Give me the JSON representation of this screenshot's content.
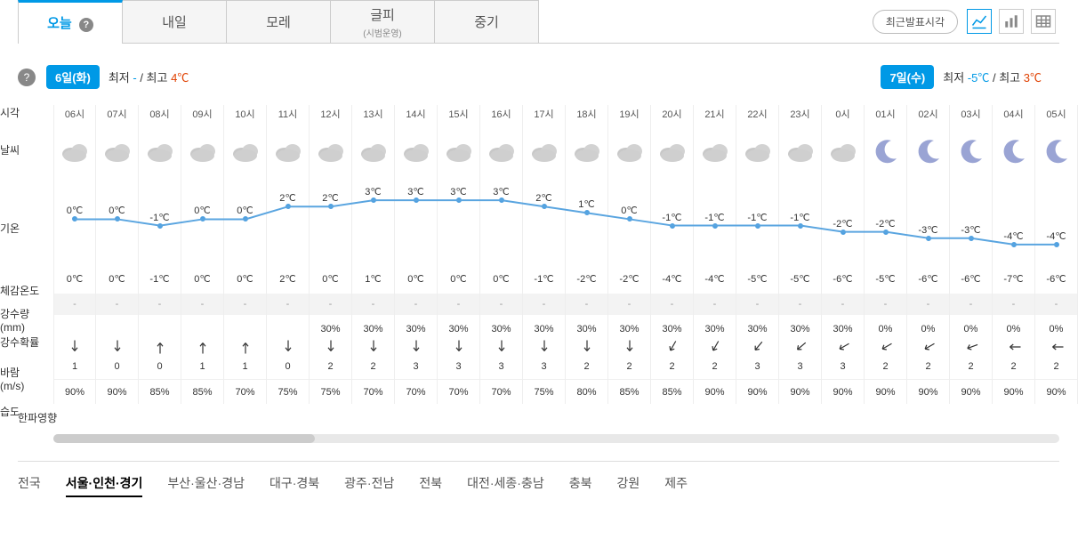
{
  "tabs": [
    {
      "label": "오늘",
      "active": true,
      "help": true
    },
    {
      "label": "내일"
    },
    {
      "label": "모레"
    },
    {
      "label": "글피",
      "sub": "(시범운영)"
    },
    {
      "label": "중기"
    }
  ],
  "latest_btn": "최근발표시각",
  "day1": {
    "pill": "6일(화)",
    "low_lbl": "최저",
    "low": "-",
    "high_lbl": "/ 최고",
    "high": "4℃"
  },
  "day2": {
    "pill": "7일(수)",
    "low_lbl": "최저",
    "low": "-5℃",
    "high_lbl": "/ 최고",
    "high": "3℃"
  },
  "row_labels": {
    "time": "시각",
    "weather": "날씨",
    "temp": "기온",
    "feel": "체감온도",
    "precip_mm": "강수량\n(mm)",
    "prob": "강수확률",
    "wind": "바람\n(m/s)",
    "humid": "습도",
    "coldwave": "한파영향"
  },
  "temp_line_color": "#5aa5e0",
  "temp_ymin": -5,
  "temp_ymax": 4,
  "temp_area_h": 100,
  "hours": [
    {
      "t": "06시",
      "icon": "cloud",
      "temp": 0,
      "temp_lbl": "0℃",
      "feel": "0℃",
      "precip": "-",
      "prob": "",
      "wdir": 90,
      "wspd": "1",
      "humid": "90%"
    },
    {
      "t": "07시",
      "icon": "cloud",
      "temp": 0,
      "temp_lbl": "0℃",
      "feel": "0℃",
      "precip": "-",
      "prob": "",
      "wdir": 90,
      "wspd": "0",
      "humid": "90%"
    },
    {
      "t": "08시",
      "icon": "cloud",
      "temp": -1,
      "temp_lbl": "-1℃",
      "feel": "-1℃",
      "precip": "-",
      "prob": "",
      "wdir": 270,
      "wspd": "0",
      "humid": "85%"
    },
    {
      "t": "09시",
      "icon": "cloud",
      "temp": 0,
      "temp_lbl": "0℃",
      "feel": "0℃",
      "precip": "-",
      "prob": "",
      "wdir": 270,
      "wspd": "1",
      "humid": "85%"
    },
    {
      "t": "10시",
      "icon": "cloud",
      "temp": 0,
      "temp_lbl": "0℃",
      "feel": "0℃",
      "precip": "-",
      "prob": "",
      "wdir": 270,
      "wspd": "1",
      "humid": "70%"
    },
    {
      "t": "11시",
      "icon": "cloud",
      "temp": 2,
      "temp_lbl": "2℃",
      "feel": "2℃",
      "precip": "-",
      "prob": "",
      "wdir": 90,
      "wspd": "0",
      "humid": "75%"
    },
    {
      "t": "12시",
      "icon": "cloud",
      "temp": 2,
      "temp_lbl": "2℃",
      "feel": "0℃",
      "precip": "-",
      "prob": "30%",
      "wdir": 90,
      "wspd": "2",
      "humid": "75%"
    },
    {
      "t": "13시",
      "icon": "cloud",
      "temp": 3,
      "temp_lbl": "3℃",
      "feel": "1℃",
      "precip": "-",
      "prob": "30%",
      "wdir": 90,
      "wspd": "2",
      "humid": "70%"
    },
    {
      "t": "14시",
      "icon": "cloud",
      "temp": 3,
      "temp_lbl": "3℃",
      "feel": "0℃",
      "precip": "-",
      "prob": "30%",
      "wdir": 90,
      "wspd": "3",
      "humid": "70%"
    },
    {
      "t": "15시",
      "icon": "cloud",
      "temp": 3,
      "temp_lbl": "3℃",
      "feel": "0℃",
      "precip": "-",
      "prob": "30%",
      "wdir": 90,
      "wspd": "3",
      "humid": "70%"
    },
    {
      "t": "16시",
      "icon": "cloud",
      "temp": 3,
      "temp_lbl": "3℃",
      "feel": "0℃",
      "precip": "-",
      "prob": "30%",
      "wdir": 90,
      "wspd": "3",
      "humid": "70%"
    },
    {
      "t": "17시",
      "icon": "cloud",
      "temp": 2,
      "temp_lbl": "2℃",
      "feel": "-1℃",
      "precip": "-",
      "prob": "30%",
      "wdir": 90,
      "wspd": "3",
      "humid": "75%"
    },
    {
      "t": "18시",
      "icon": "cloud",
      "temp": 1,
      "temp_lbl": "1℃",
      "feel": "-2℃",
      "precip": "-",
      "prob": "30%",
      "wdir": 90,
      "wspd": "2",
      "humid": "80%"
    },
    {
      "t": "19시",
      "icon": "cloud",
      "temp": 0,
      "temp_lbl": "0℃",
      "feel": "-2℃",
      "precip": "-",
      "prob": "30%",
      "wdir": 90,
      "wspd": "2",
      "humid": "85%"
    },
    {
      "t": "20시",
      "icon": "cloud",
      "temp": -1,
      "temp_lbl": "-1℃",
      "feel": "-4℃",
      "precip": "-",
      "prob": "30%",
      "wdir": 120,
      "wspd": "2",
      "humid": "85%"
    },
    {
      "t": "21시",
      "icon": "cloud",
      "temp": -1,
      "temp_lbl": "-1℃",
      "feel": "-4℃",
      "precip": "-",
      "prob": "30%",
      "wdir": 120,
      "wspd": "2",
      "humid": "90%"
    },
    {
      "t": "22시",
      "icon": "cloud",
      "temp": -1,
      "temp_lbl": "-1℃",
      "feel": "-5℃",
      "precip": "-",
      "prob": "30%",
      "wdir": 130,
      "wspd": "3",
      "humid": "90%"
    },
    {
      "t": "23시",
      "icon": "cloud",
      "temp": -1,
      "temp_lbl": "-1℃",
      "feel": "-5℃",
      "precip": "-",
      "prob": "30%",
      "wdir": 140,
      "wspd": "3",
      "humid": "90%"
    },
    {
      "t": "0시",
      "icon": "cloud",
      "temp": -2,
      "temp_lbl": "-2℃",
      "feel": "-6℃",
      "precip": "-",
      "prob": "30%",
      "wdir": 150,
      "wspd": "3",
      "humid": "90%"
    },
    {
      "t": "01시",
      "icon": "moon",
      "temp": -2,
      "temp_lbl": "-2℃",
      "feel": "-5℃",
      "precip": "-",
      "prob": "0%",
      "wdir": 150,
      "wspd": "2",
      "humid": "90%"
    },
    {
      "t": "02시",
      "icon": "moon",
      "temp": -3,
      "temp_lbl": "-3℃",
      "feel": "-6℃",
      "precip": "-",
      "prob": "0%",
      "wdir": 150,
      "wspd": "2",
      "humid": "90%"
    },
    {
      "t": "03시",
      "icon": "moon",
      "temp": -3,
      "temp_lbl": "-3℃",
      "feel": "-6℃",
      "precip": "-",
      "prob": "0%",
      "wdir": 160,
      "wspd": "2",
      "humid": "90%"
    },
    {
      "t": "04시",
      "icon": "moon",
      "temp": -4,
      "temp_lbl": "-4℃",
      "feel": "-7℃",
      "precip": "-",
      "prob": "0%",
      "wdir": 180,
      "wspd": "2",
      "humid": "90%"
    },
    {
      "t": "05시",
      "icon": "moon",
      "temp": -4,
      "temp_lbl": "-4℃",
      "feel": "-6℃",
      "precip": "-",
      "prob": "0%",
      "wdir": 180,
      "wspd": "2",
      "humid": "90%"
    }
  ],
  "regions": [
    {
      "label": "전국"
    },
    {
      "label": "서울·인천·경기",
      "active": true
    },
    {
      "label": "부산·울산·경남"
    },
    {
      "label": "대구·경북"
    },
    {
      "label": "광주·전남"
    },
    {
      "label": "전북"
    },
    {
      "label": "대전·세종·충남"
    },
    {
      "label": "충북"
    },
    {
      "label": "강원"
    },
    {
      "label": "제주"
    }
  ]
}
